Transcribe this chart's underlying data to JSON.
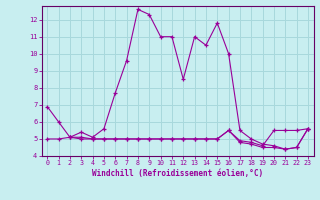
{
  "xlabel": "Windchill (Refroidissement éolien,°C)",
  "background_color": "#c8eef0",
  "grid_color": "#a8d8dc",
  "line_color": "#990099",
  "axis_color": "#660066",
  "xlim": [
    -0.5,
    23.5
  ],
  "ylim": [
    4,
    12.8
  ],
  "yticks": [
    4,
    5,
    6,
    7,
    8,
    9,
    10,
    11,
    12
  ],
  "xticks": [
    0,
    1,
    2,
    3,
    4,
    5,
    6,
    7,
    8,
    9,
    10,
    11,
    12,
    13,
    14,
    15,
    16,
    17,
    18,
    19,
    20,
    21,
    22,
    23
  ],
  "series1_x": [
    0,
    1,
    2,
    3,
    4,
    5,
    6,
    7,
    8,
    9,
    10,
    11,
    12,
    13,
    14,
    15,
    16,
    17,
    18,
    19,
    20,
    21,
    22,
    23
  ],
  "series1_y": [
    6.9,
    6.0,
    5.1,
    5.4,
    5.1,
    5.6,
    7.7,
    9.6,
    12.6,
    12.3,
    11.0,
    11.0,
    8.5,
    11.0,
    10.5,
    11.8,
    10.0,
    5.5,
    5.0,
    4.7,
    4.6,
    4.4,
    4.5,
    5.6
  ],
  "series2_x": [
    0,
    1,
    2,
    3,
    4,
    5,
    6,
    7,
    8,
    9,
    10,
    11,
    12,
    13,
    14,
    15,
    16,
    17,
    18,
    19,
    20,
    21,
    22,
    23
  ],
  "series2_y": [
    5.0,
    5.0,
    5.1,
    5.1,
    5.0,
    5.0,
    5.0,
    5.0,
    5.0,
    5.0,
    5.0,
    5.0,
    5.0,
    5.0,
    5.0,
    5.0,
    5.5,
    4.9,
    4.8,
    4.6,
    5.5,
    5.5,
    5.5,
    5.6
  ],
  "series3_x": [
    2,
    3,
    4,
    5,
    6,
    7,
    8,
    9,
    10,
    11,
    12,
    13,
    14,
    15,
    16,
    17,
    18,
    19,
    20,
    21,
    22,
    23
  ],
  "series3_y": [
    5.1,
    5.0,
    5.0,
    5.0,
    5.0,
    5.0,
    5.0,
    5.0,
    5.0,
    5.0,
    5.0,
    5.0,
    5.0,
    5.0,
    5.5,
    4.8,
    4.7,
    4.5,
    4.5,
    4.4,
    4.5,
    5.6
  ]
}
